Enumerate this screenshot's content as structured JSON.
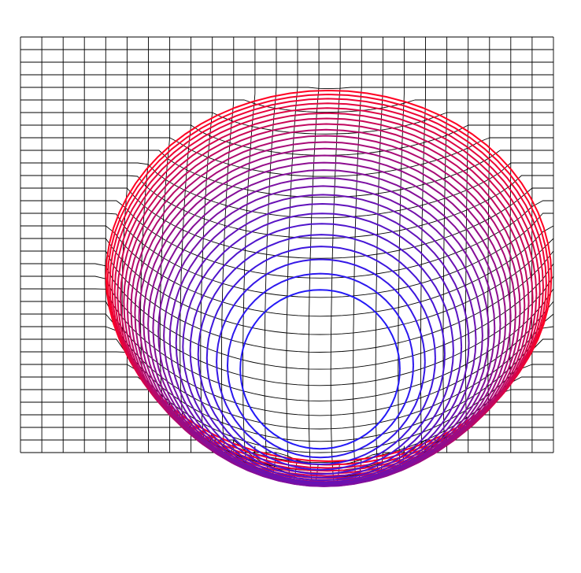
{
  "figure": {
    "kind": "3d-wireframe-surface",
    "background": "#ffffff",
    "mesh_color": "#000000",
    "contour_color_high": "#ff0022",
    "contour_color_low": "#1a1aff",
    "contour_level_count": 26,
    "grid_columns": 25,
    "grid_rows": 33
  }
}
